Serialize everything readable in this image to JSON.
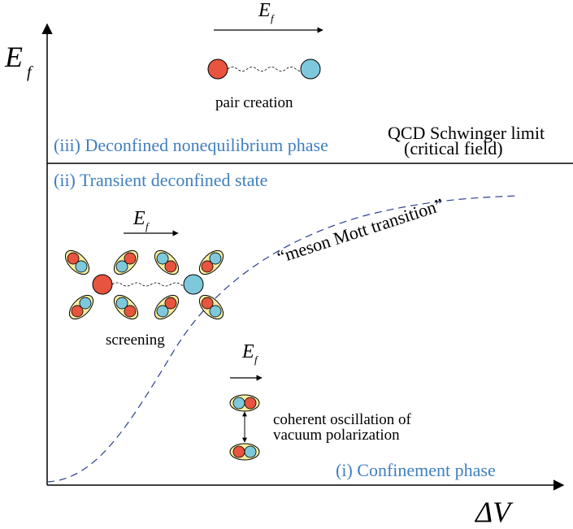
{
  "axes": {
    "y_symbol": "E",
    "y_subscript": "f",
    "x_symbol": "ΔV"
  },
  "phases": {
    "iii": "(iii) Deconfined nonequilibrium phase",
    "ii": "(ii) Transient deconfined state",
    "i": "(i) Confinement phase"
  },
  "schwinger": {
    "line1": "QCD Schwinger limit",
    "line2": "(critical field)"
  },
  "curve_label": "“meson Mott transition”",
  "field_symbol": {
    "main": "E",
    "sub": "f"
  },
  "labels": {
    "pair_creation": "pair creation",
    "screening": "screening",
    "coherent_line1": "coherent oscillation of",
    "coherent_line2": "vacuum  polarization"
  },
  "colors": {
    "red": "#e8543f",
    "blue": "#7ec8dc",
    "yellow": "#f7eea1",
    "phase_text": "#3f7fc0",
    "dashed": "#2a3f8f"
  }
}
